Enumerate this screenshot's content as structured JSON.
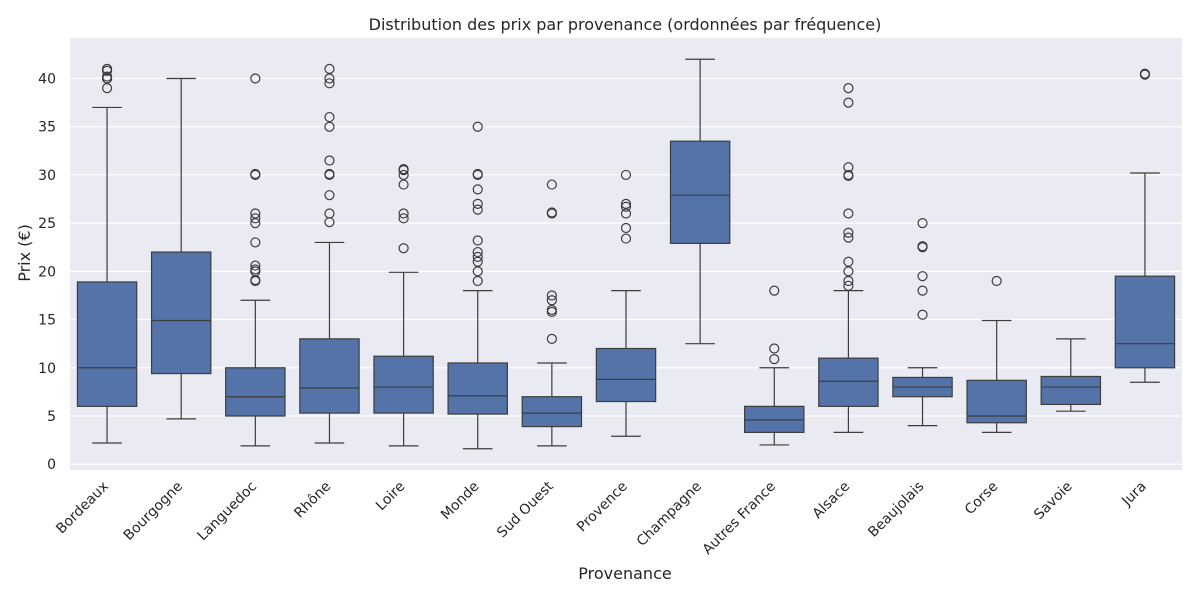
{
  "chart_data": {
    "type": "box",
    "title": "Distribution des prix par provenance (ordonnées par fréquence)",
    "xlabel": "Provenance",
    "ylabel": "Prix (€)",
    "ylim": [
      -0.6,
      44.2
    ],
    "yticks": [
      0,
      5,
      10,
      15,
      20,
      25,
      30,
      35,
      40
    ],
    "grid": true,
    "colors": {
      "box": "#5473a8",
      "plot_bg": "#eaeaf2",
      "grid": "#ffffff",
      "line": "#3d3d3d"
    },
    "categories": [
      "Bordeaux",
      "Bourgogne",
      "Languedoc",
      "Rhône",
      "Loire",
      "Monde",
      "Sud Ouest",
      "Provence",
      "Champagne",
      "Autres France",
      "Alsace",
      "Beaujolais",
      "Corse",
      "Savoie",
      "Jura"
    ],
    "boxes": [
      {
        "min": 2.2,
        "q1": 6.0,
        "median": 10.0,
        "q3": 18.9,
        "max": 37.0,
        "outliers": [
          39.0,
          40.0,
          40.0,
          40.2,
          40.8,
          41.0
        ]
      },
      {
        "min": 4.7,
        "q1": 9.4,
        "median": 14.9,
        "q3": 22.0,
        "max": 40.0,
        "outliers": []
      },
      {
        "min": 1.9,
        "q1": 5.0,
        "median": 7.0,
        "q3": 10.0,
        "max": 17.0,
        "outliers": [
          19.0,
          19.1,
          20.0,
          20.2,
          20.6,
          23.0,
          25.0,
          25.5,
          26.0,
          30.0,
          30.1,
          40.0
        ]
      },
      {
        "min": 2.2,
        "q1": 5.3,
        "median": 7.9,
        "q3": 13.0,
        "max": 23.0,
        "outliers": [
          25.1,
          26.0,
          27.9,
          30.0,
          30.1,
          31.5,
          35.0,
          36.0,
          39.5,
          40.0,
          41.0
        ]
      },
      {
        "min": 1.9,
        "q1": 5.3,
        "median": 8.0,
        "q3": 11.2,
        "max": 19.9,
        "outliers": [
          22.4,
          25.5,
          26.0,
          29.0,
          30.0,
          30.5,
          30.6
        ]
      },
      {
        "min": 1.6,
        "q1": 5.2,
        "median": 7.1,
        "q3": 10.5,
        "max": 18.0,
        "outliers": [
          19.0,
          20.0,
          21.0,
          21.5,
          22.0,
          23.2,
          26.4,
          27.0,
          28.5,
          30.0,
          30.1,
          35.0
        ]
      },
      {
        "min": 1.9,
        "q1": 3.9,
        "median": 5.3,
        "q3": 7.0,
        "max": 10.5,
        "outliers": [
          13.0,
          15.8,
          16.0,
          17.0,
          17.5,
          26.0,
          26.1,
          29.0
        ]
      },
      {
        "min": 2.9,
        "q1": 6.5,
        "median": 8.8,
        "q3": 12.0,
        "max": 18.0,
        "outliers": [
          23.4,
          24.5,
          26.0,
          26.7,
          27.0,
          30.0
        ]
      },
      {
        "min": 12.5,
        "q1": 22.9,
        "median": 27.9,
        "q3": 33.5,
        "max": 42.0,
        "outliers": []
      },
      {
        "min": 2.0,
        "q1": 3.3,
        "median": 4.6,
        "q3": 6.0,
        "max": 10.0,
        "outliers": [
          10.9,
          12.0,
          18.0
        ]
      },
      {
        "min": 3.3,
        "q1": 6.0,
        "median": 8.6,
        "q3": 11.0,
        "max": 18.0,
        "outliers": [
          18.5,
          19.0,
          20.0,
          21.0,
          23.5,
          24.0,
          26.0,
          29.9,
          30.0,
          30.8,
          37.5,
          39.0
        ]
      },
      {
        "min": 4.0,
        "q1": 7.0,
        "median": 8.0,
        "q3": 9.0,
        "max": 10.0,
        "outliers": [
          15.5,
          18.0,
          19.5,
          22.5,
          22.6,
          25.0
        ]
      },
      {
        "min": 3.3,
        "q1": 4.3,
        "median": 5.0,
        "q3": 8.7,
        "max": 14.9,
        "outliers": [
          19.0
        ]
      },
      {
        "min": 5.5,
        "q1": 6.2,
        "median": 8.0,
        "q3": 9.1,
        "max": 13.0,
        "outliers": []
      },
      {
        "min": 8.5,
        "q1": 10.0,
        "median": 12.5,
        "q3": 19.5,
        "max": 30.2,
        "outliers": [
          40.4,
          40.5
        ]
      }
    ]
  }
}
